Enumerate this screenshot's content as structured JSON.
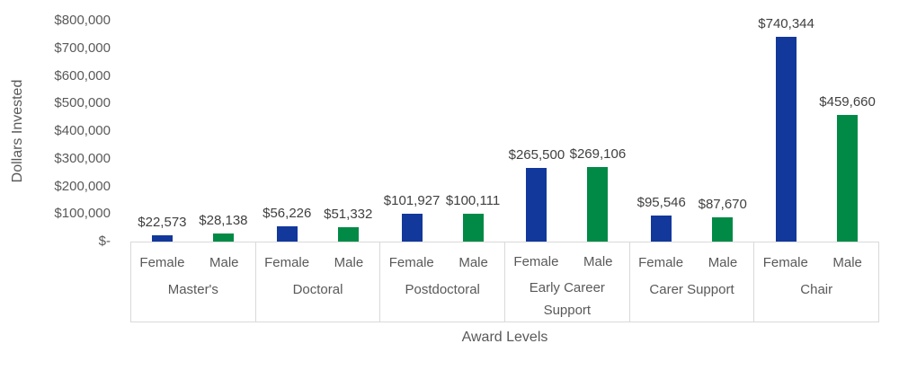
{
  "chart_data": {
    "type": "bar",
    "title": "",
    "xlabel": "Award Levels",
    "ylabel": "Dollars Invested",
    "categories": [
      "Master's",
      "Doctoral",
      "Postdoctoral",
      "Early Career Support",
      "Carer Support",
      "Chair"
    ],
    "series": [
      {
        "name": "Female",
        "color": "#12389B",
        "values": [
          22573,
          56226,
          101927,
          265500,
          95546,
          740344
        ],
        "labels": [
          "$22,573",
          "$56,226",
          "$101,927",
          "$265,500",
          "$95,546",
          "$740,344"
        ]
      },
      {
        "name": "Male",
        "color": "#008A46",
        "values": [
          28138,
          51332,
          100111,
          269106,
          87670,
          459660
        ],
        "labels": [
          "$28,138",
          "$51,332",
          "$100,111",
          "$269,106",
          "$87,670",
          "$459,660"
        ]
      }
    ],
    "ylim": [
      0,
      800000
    ],
    "ytick_step": 100000,
    "ytick_labels": [
      "$-",
      "$100,000",
      "$200,000",
      "$300,000",
      "$400,000",
      "$500,000",
      "$600,000",
      "$700,000",
      "$800,000"
    ],
    "grid": false,
    "legend": "none",
    "colors": {
      "axis_line": "#D9D9D9",
      "tick_text": "#595959",
      "data_label_text": "#404040",
      "background": "#ffffff"
    }
  }
}
